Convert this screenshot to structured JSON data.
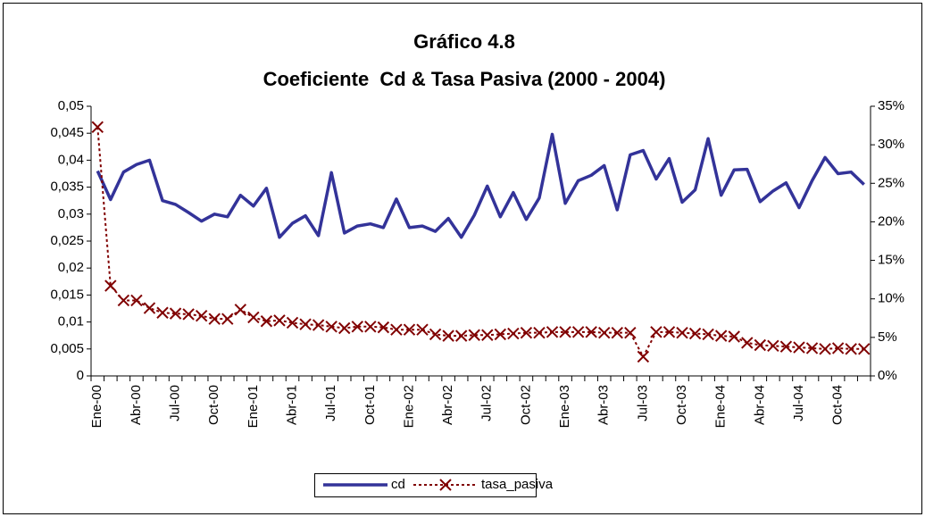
{
  "chart_data": {
    "type": "line",
    "title": "Gráfico 4.8",
    "subtitle": "Coeficiente  Cd & Tasa Pasiva (2000 - 2004)",
    "categories": [
      "Ene-00",
      null,
      null,
      "Abr-00",
      null,
      null,
      "Jul-00",
      null,
      null,
      "Oct-00",
      null,
      null,
      "Ene-01",
      null,
      null,
      "Abr-01",
      null,
      null,
      "Jul-01",
      null,
      null,
      "Oct-01",
      null,
      null,
      "Ene-02",
      null,
      null,
      "Abr-02",
      null,
      null,
      "Jul-02",
      null,
      null,
      "Oct-02",
      null,
      null,
      "Ene-03",
      null,
      null,
      "Abr-03",
      null,
      null,
      "Jul-03",
      null,
      null,
      "Oct-03",
      null,
      null,
      "Ene-04",
      null,
      null,
      "Abr-04",
      null,
      null,
      "Jul-04",
      null,
      null,
      "Oct-04",
      null,
      null
    ],
    "series": [
      {
        "name": "cd",
        "color": "#333399",
        "axis": "y",
        "values": [
          0.038,
          0.0327,
          0.0378,
          0.0392,
          0.04,
          0.0325,
          0.0318,
          0.0303,
          0.0287,
          0.03,
          0.0295,
          0.0335,
          0.0315,
          0.0348,
          0.0257,
          0.0283,
          0.0297,
          0.026,
          0.0377,
          0.0265,
          0.0278,
          0.0282,
          0.0275,
          0.0328,
          0.0275,
          0.0278,
          0.0268,
          0.0292,
          0.0257,
          0.0298,
          0.0352,
          0.0295,
          0.034,
          0.029,
          0.033,
          0.0448,
          0.032,
          0.0362,
          0.0372,
          0.039,
          0.0308,
          0.041,
          0.0418,
          0.0365,
          0.0403,
          0.0322,
          0.0345,
          0.044,
          0.0335,
          0.0382,
          0.0383,
          0.0323,
          0.0343,
          0.0358,
          0.0312,
          0.0362,
          0.0405,
          0.0375,
          0.0378,
          0.0355
        ]
      },
      {
        "name": "tasa_pasiva",
        "color": "#800000",
        "axis": "y2",
        "values": [
          32.3,
          11.7,
          9.8,
          9.8,
          8.8,
          8.2,
          8.1,
          8.0,
          7.8,
          7.4,
          7.4,
          8.6,
          7.6,
          7.1,
          7.2,
          6.9,
          6.7,
          6.6,
          6.4,
          6.2,
          6.4,
          6.4,
          6.3,
          6.0,
          6.0,
          6.0,
          5.4,
          5.2,
          5.2,
          5.3,
          5.3,
          5.4,
          5.5,
          5.6,
          5.6,
          5.7,
          5.7,
          5.7,
          5.7,
          5.6,
          5.6,
          5.6,
          2.5,
          5.7,
          5.7,
          5.6,
          5.5,
          5.4,
          5.2,
          5.1,
          4.3,
          4.0,
          3.9,
          3.8,
          3.7,
          3.6,
          3.5,
          3.6,
          3.5,
          3.5
        ]
      }
    ],
    "ylim": [
      0,
      0.05
    ],
    "yticks": [
      0,
      {
        "value": 0.005,
        "label": "0,005"
      },
      {
        "value": 0.01,
        "label": "0,01"
      },
      {
        "value": 0.015,
        "label": "0,015"
      },
      {
        "value": 0.02,
        "label": "0,02"
      },
      {
        "value": 0.025,
        "label": "0,025"
      },
      {
        "value": 0.03,
        "label": "0,03"
      },
      {
        "value": 0.035,
        "label": "0,035"
      },
      {
        "value": 0.04,
        "label": "0,04"
      },
      {
        "value": 0.045,
        "label": "0,045"
      },
      {
        "value": 0.05,
        "label": "0,05"
      }
    ],
    "y2lim": [
      0,
      35
    ],
    "y2ticks": [
      {
        "value": 0,
        "label": "0%"
      },
      {
        "value": 5,
        "label": "5%"
      },
      {
        "value": 10,
        "label": "10%"
      },
      {
        "value": 15,
        "label": "15%"
      },
      {
        "value": 20,
        "label": "20%"
      },
      {
        "value": 25,
        "label": "25%"
      },
      {
        "value": 30,
        "label": "30%"
      },
      {
        "value": 35,
        "label": "35%"
      }
    ],
    "legend": "bottom",
    "grid": false
  }
}
